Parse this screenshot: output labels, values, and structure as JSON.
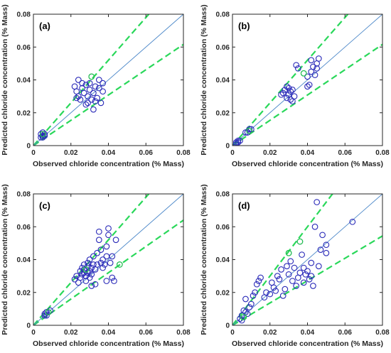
{
  "colors": {
    "points": "#2a2ab8",
    "highlight_points": "#22d044",
    "reference_line": "#4a86c8",
    "bound_lines": "#2ad85a"
  },
  "chart_data": [
    {
      "panel": "(a)",
      "type": "scatter",
      "xlabel": "Observed chloride concentration (% Mass)",
      "ylabel": "Predicted chloride concentration (% Mass)",
      "xlim": [
        0,
        0.08
      ],
      "ylim": [
        0,
        0.08
      ],
      "xticks": [
        "0",
        "0.02",
        "0.04",
        "0.06",
        "0.08"
      ],
      "yticks": [
        "0",
        "0.02",
        "0.04",
        "0.06",
        "0.08"
      ],
      "reference_line_slope": 1,
      "bound_slopes": [
        1.3,
        0.77
      ],
      "points": [
        [
          0.005,
          0.006
        ],
        [
          0.005,
          0.007
        ],
        [
          0.004,
          0.005
        ],
        [
          0.006,
          0.006
        ],
        [
          0.005,
          0.005
        ],
        [
          0.004,
          0.007
        ],
        [
          0.006,
          0.007
        ],
        [
          0.005,
          0.008
        ],
        [
          0.022,
          0.036
        ],
        [
          0.023,
          0.033
        ],
        [
          0.024,
          0.03
        ],
        [
          0.025,
          0.028
        ],
        [
          0.026,
          0.035
        ],
        [
          0.027,
          0.032
        ],
        [
          0.028,
          0.037
        ],
        [
          0.028,
          0.025
        ],
        [
          0.029,
          0.03
        ],
        [
          0.03,
          0.034
        ],
        [
          0.031,
          0.028
        ],
        [
          0.031,
          0.042
        ],
        [
          0.032,
          0.022
        ],
        [
          0.032,
          0.032
        ],
        [
          0.033,
          0.036
        ],
        [
          0.034,
          0.029
        ],
        [
          0.035,
          0.035
        ],
        [
          0.036,
          0.026
        ],
        [
          0.037,
          0.033
        ],
        [
          0.037,
          0.038
        ],
        [
          0.024,
          0.04
        ],
        [
          0.026,
          0.038
        ],
        [
          0.03,
          0.038
        ],
        [
          0.035,
          0.04
        ],
        [
          0.023,
          0.029
        ],
        [
          0.029,
          0.026
        ],
        [
          0.033,
          0.027
        ]
      ],
      "highlight_points": [
        [
          0.031,
          0.042
        ],
        [
          0.005,
          0.007
        ]
      ]
    },
    {
      "panel": "(b)",
      "type": "scatter",
      "xlabel": "Observed chloride concentration (% Mass)",
      "ylabel": "Predicted chloride concentration (% Mass)",
      "xlim": [
        0,
        0.08
      ],
      "ylim": [
        0,
        0.08
      ],
      "xticks": [
        "0",
        "0.02",
        "0.04",
        "0.06",
        "0.08"
      ],
      "yticks": [
        "0",
        "0.02",
        "0.04",
        "0.06",
        "0.08"
      ],
      "reference_line_slope": 1,
      "bound_slopes": [
        1.3,
        0.77
      ],
      "points": [
        [
          0.003,
          0.003
        ],
        [
          0.003,
          0.002
        ],
        [
          0.002,
          0.002
        ],
        [
          0.004,
          0.003
        ],
        [
          0.002,
          0.001
        ],
        [
          0.008,
          0.008
        ],
        [
          0.009,
          0.009
        ],
        [
          0.007,
          0.008
        ],
        [
          0.009,
          0.01
        ],
        [
          0.01,
          0.01
        ],
        [
          0.026,
          0.031
        ],
        [
          0.027,
          0.032
        ],
        [
          0.028,
          0.034
        ],
        [
          0.029,
          0.029
        ],
        [
          0.03,
          0.031
        ],
        [
          0.03,
          0.035
        ],
        [
          0.031,
          0.033
        ],
        [
          0.031,
          0.028
        ],
        [
          0.032,
          0.034
        ],
        [
          0.033,
          0.03
        ],
        [
          0.029,
          0.036
        ],
        [
          0.032,
          0.027
        ],
        [
          0.034,
          0.049
        ],
        [
          0.035,
          0.047
        ],
        [
          0.038,
          0.044
        ],
        [
          0.04,
          0.042
        ],
        [
          0.042,
          0.045
        ],
        [
          0.043,
          0.048
        ],
        [
          0.044,
          0.043
        ],
        [
          0.045,
          0.05
        ],
        [
          0.046,
          0.053
        ],
        [
          0.042,
          0.052
        ],
        [
          0.04,
          0.036
        ],
        [
          0.041,
          0.037
        ],
        [
          0.045,
          0.047
        ]
      ],
      "highlight_points": [
        [
          0.038,
          0.044
        ],
        [
          0.009,
          0.009
        ]
      ]
    },
    {
      "panel": "(c)",
      "type": "scatter",
      "xlabel": "Observed chloride concentration (% Mass)",
      "ylabel": "Predicted chloride concentration (% Mass)",
      "xlim": [
        0,
        0.08
      ],
      "ylim": [
        0,
        0.08
      ],
      "xticks": [
        "0",
        "0.02",
        "0.04",
        "0.06",
        "0.08"
      ],
      "yticks": [
        "0",
        "0.02",
        "0.04",
        "0.06",
        "0.08"
      ],
      "reference_line_slope": 1,
      "bound_slopes": [
        1.3,
        0.8
      ],
      "points": [
        [
          0.006,
          0.007
        ],
        [
          0.007,
          0.008
        ],
        [
          0.008,
          0.008
        ],
        [
          0.006,
          0.006
        ],
        [
          0.009,
          0.009
        ],
        [
          0.007,
          0.006
        ],
        [
          0.022,
          0.028
        ],
        [
          0.023,
          0.03
        ],
        [
          0.024,
          0.026
        ],
        [
          0.025,
          0.033
        ],
        [
          0.025,
          0.029
        ],
        [
          0.026,
          0.035
        ],
        [
          0.026,
          0.031
        ],
        [
          0.027,
          0.032
        ],
        [
          0.027,
          0.037
        ],
        [
          0.028,
          0.03
        ],
        [
          0.028,
          0.034
        ],
        [
          0.029,
          0.036
        ],
        [
          0.029,
          0.032
        ],
        [
          0.03,
          0.033
        ],
        [
          0.03,
          0.04
        ],
        [
          0.03,
          0.029
        ],
        [
          0.031,
          0.035
        ],
        [
          0.031,
          0.031
        ],
        [
          0.032,
          0.037
        ],
        [
          0.032,
          0.042
        ],
        [
          0.033,
          0.034
        ],
        [
          0.033,
          0.025
        ],
        [
          0.034,
          0.044
        ],
        [
          0.034,
          0.037
        ],
        [
          0.035,
          0.052
        ],
        [
          0.035,
          0.057
        ],
        [
          0.036,
          0.038
        ],
        [
          0.036,
          0.046
        ],
        [
          0.037,
          0.035
        ],
        [
          0.037,
          0.04
        ],
        [
          0.038,
          0.037
        ],
        [
          0.039,
          0.048
        ],
        [
          0.039,
          0.042
        ],
        [
          0.04,
          0.059
        ],
        [
          0.04,
          0.055
        ],
        [
          0.041,
          0.038
        ],
        [
          0.042,
          0.042
        ],
        [
          0.042,
          0.029
        ],
        [
          0.043,
          0.027
        ],
        [
          0.044,
          0.052
        ],
        [
          0.046,
          0.037
        ],
        [
          0.039,
          0.027
        ],
        [
          0.028,
          0.027
        ],
        [
          0.031,
          0.024
        ],
        [
          0.029,
          0.038
        ],
        [
          0.027,
          0.034
        ]
      ],
      "highlight_points": [
        [
          0.028,
          0.034
        ],
        [
          0.008,
          0.008
        ],
        [
          0.046,
          0.037
        ]
      ]
    },
    {
      "panel": "(d)",
      "type": "scatter",
      "xlabel": "Observed chloride concentration (% Mass)",
      "ylabel": "Predicted chloride concentration (% Mass)",
      "xlim": [
        0,
        0.08
      ],
      "ylim": [
        0,
        0.08
      ],
      "xticks": [
        "0",
        "0.02",
        "0.04",
        "0.06",
        "0.08"
      ],
      "yticks": [
        "0",
        "0.02",
        "0.04",
        "0.06",
        "0.08"
      ],
      "reference_line_slope": 1,
      "bound_slopes": [
        1.5,
        0.68
      ],
      "points": [
        [
          0.004,
          0.004
        ],
        [
          0.005,
          0.006
        ],
        [
          0.006,
          0.005
        ],
        [
          0.007,
          0.008
        ],
        [
          0.005,
          0.003
        ],
        [
          0.006,
          0.009
        ],
        [
          0.008,
          0.007
        ],
        [
          0.009,
          0.011
        ],
        [
          0.01,
          0.013
        ],
        [
          0.007,
          0.016
        ],
        [
          0.011,
          0.018
        ],
        [
          0.012,
          0.02
        ],
        [
          0.013,
          0.025
        ],
        [
          0.014,
          0.027
        ],
        [
          0.015,
          0.029
        ],
        [
          0.017,
          0.017
        ],
        [
          0.018,
          0.02
        ],
        [
          0.02,
          0.019
        ],
        [
          0.021,
          0.026
        ],
        [
          0.022,
          0.023
        ],
        [
          0.023,
          0.021
        ],
        [
          0.024,
          0.03
        ],
        [
          0.025,
          0.028
        ],
        [
          0.026,
          0.034
        ],
        [
          0.027,
          0.018
        ],
        [
          0.028,
          0.022
        ],
        [
          0.029,
          0.036
        ],
        [
          0.03,
          0.031
        ],
        [
          0.031,
          0.039
        ],
        [
          0.032,
          0.027
        ],
        [
          0.033,
          0.035
        ],
        [
          0.034,
          0.024
        ],
        [
          0.035,
          0.029
        ],
        [
          0.036,
          0.032
        ],
        [
          0.037,
          0.043
        ],
        [
          0.038,
          0.026
        ],
        [
          0.039,
          0.031
        ],
        [
          0.04,
          0.033
        ],
        [
          0.041,
          0.028
        ],
        [
          0.042,
          0.03
        ],
        [
          0.043,
          0.024
        ],
        [
          0.044,
          0.06
        ],
        [
          0.045,
          0.075
        ],
        [
          0.046,
          0.036
        ],
        [
          0.047,
          0.046
        ],
        [
          0.048,
          0.055
        ],
        [
          0.05,
          0.044
        ],
        [
          0.05,
          0.049
        ],
        [
          0.064,
          0.063
        ],
        [
          0.03,
          0.044
        ],
        [
          0.036,
          0.051
        ],
        [
          0.042,
          0.038
        ],
        [
          0.038,
          0.035
        ]
      ],
      "highlight_points": [
        [
          0.03,
          0.044
        ],
        [
          0.006,
          0.005
        ],
        [
          0.036,
          0.051
        ]
      ]
    }
  ]
}
